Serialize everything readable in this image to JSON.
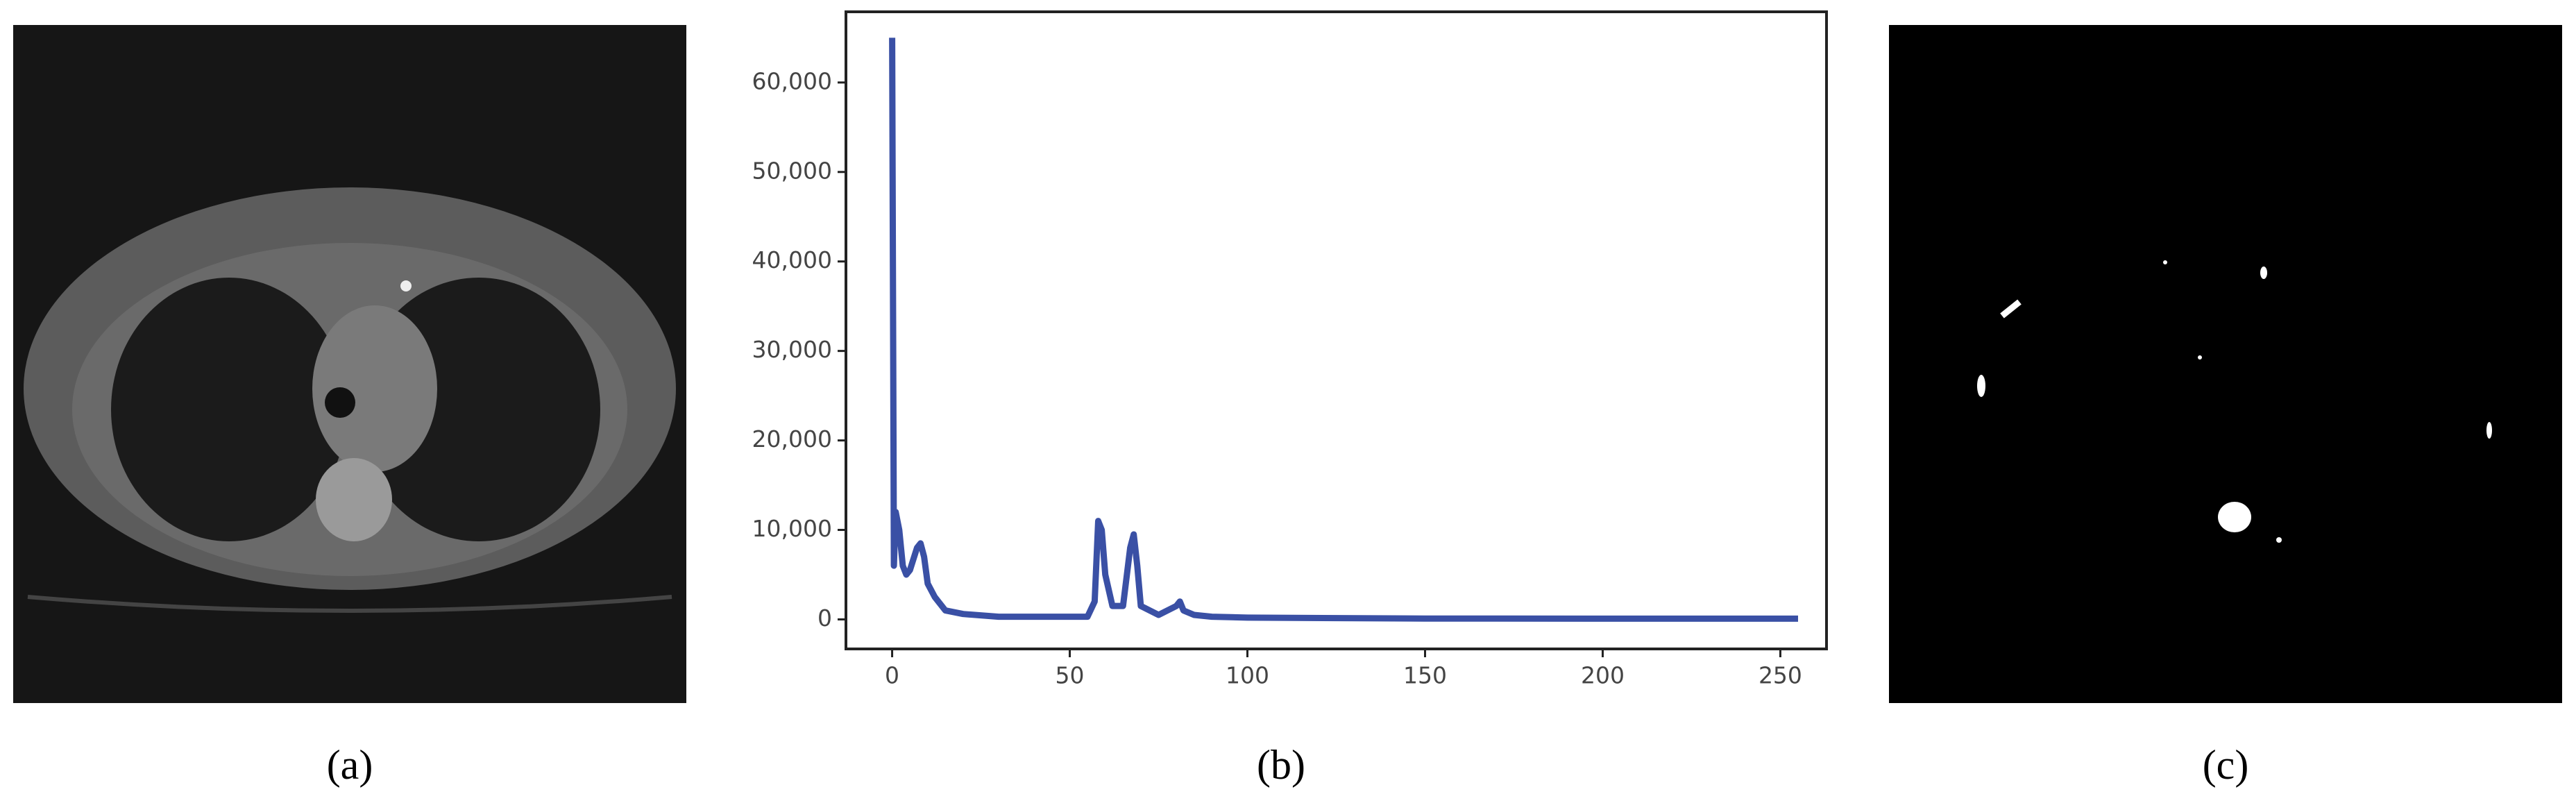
{
  "chart_data": {
    "type": "line",
    "x": [
      0,
      0.5,
      1,
      2,
      3,
      4,
      5,
      7,
      8,
      9,
      10,
      12,
      15,
      20,
      30,
      40,
      55,
      57,
      58,
      59,
      60,
      62,
      65,
      67,
      68,
      69,
      70,
      75,
      80,
      81,
      82,
      85,
      90,
      100,
      150,
      200,
      255
    ],
    "series": [
      {
        "color": "#3a50a5",
        "values": [
          65000,
          6000,
          12000,
          10000,
          6000,
          5000,
          5500,
          8000,
          8500,
          7000,
          4000,
          2500,
          1000,
          600,
          300,
          300,
          300,
          2000,
          11000,
          10000,
          5000,
          1500,
          1500,
          8000,
          9500,
          6000,
          1500,
          500,
          1500,
          2000,
          1000,
          500,
          300,
          200,
          100,
          80,
          80
        ]
      }
    ],
    "xlim": [
      -13,
      263
    ],
    "ylim": [
      -3300,
      67900
    ],
    "xticks": [
      0,
      50,
      100,
      150,
      200,
      250
    ],
    "yticks": [
      0,
      {
        "value": 10000,
        "label": "10,000"
      },
      {
        "value": 20000,
        "label": "20,000"
      },
      {
        "value": 30000,
        "label": "30,000"
      },
      {
        "value": 40000,
        "label": "40,000"
      },
      {
        "value": 50000,
        "label": "50,000"
      },
      {
        "value": 60000,
        "label": "60,000"
      }
    ]
  },
  "captions": [
    "(a)",
    "(b)",
    "(c)"
  ]
}
